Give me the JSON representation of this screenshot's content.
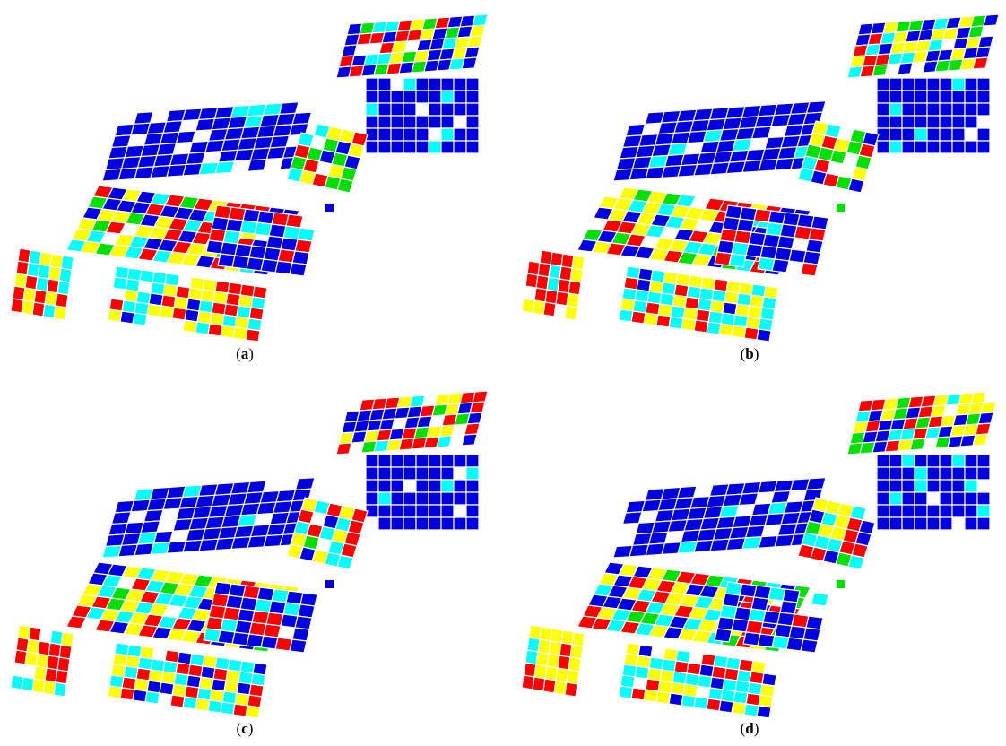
{
  "panels": [
    {
      "caption": {
        "open": "(",
        "letter": "a",
        "close": ")"
      }
    },
    {
      "caption": {
        "open": "(",
        "letter": "b",
        "close": ")"
      }
    },
    {
      "caption": {
        "open": "(",
        "letter": "c",
        "close": ")"
      }
    },
    {
      "caption": {
        "open": "(",
        "letter": "d",
        "close": ")"
      }
    }
  ]
}
